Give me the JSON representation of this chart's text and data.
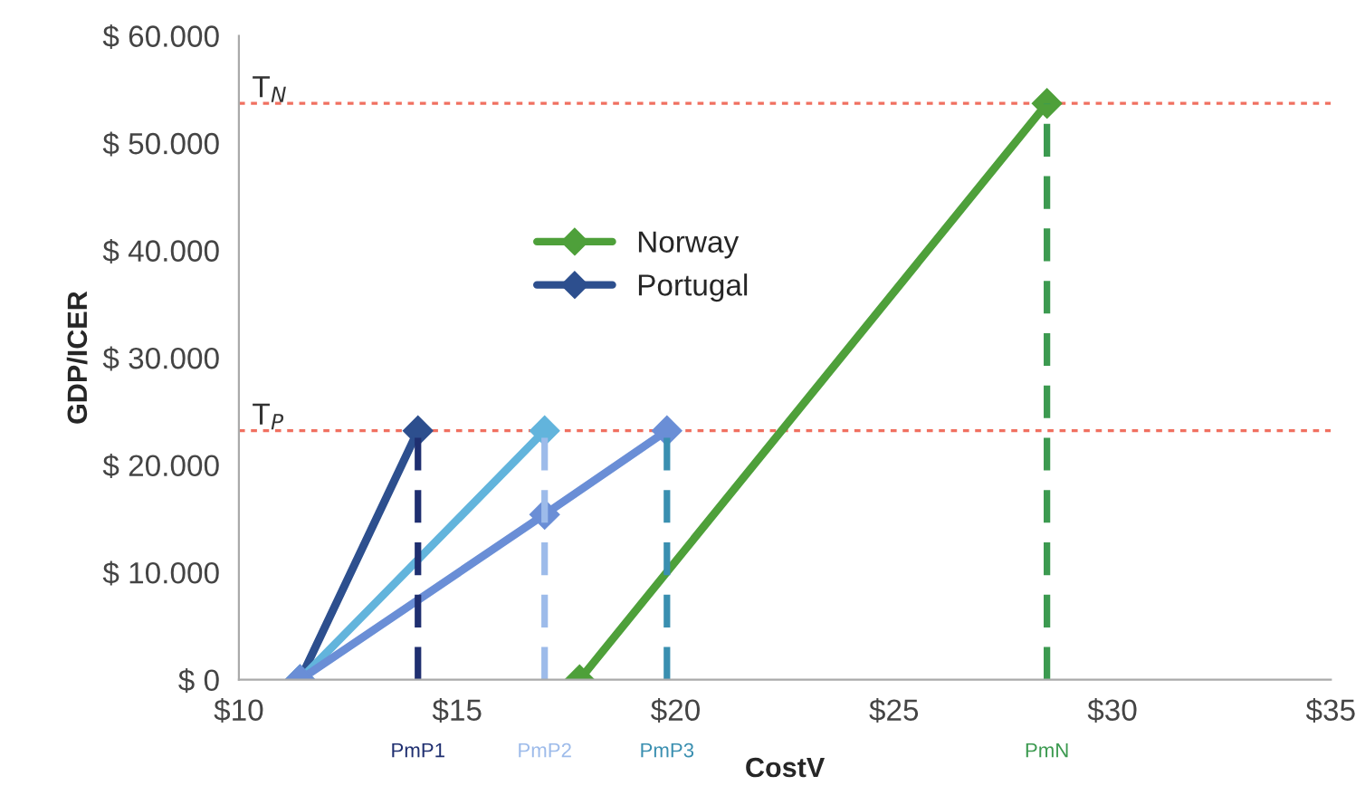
{
  "chart_data": {
    "type": "line",
    "xlabel": "CostV",
    "ylabel": "GDP/ICER",
    "series": [
      {
        "name": "Norway",
        "color": "#4ea03a",
        "x": [
          17.8,
          28.5
        ],
        "values": [
          0,
          53700
        ],
        "marker": "diamond",
        "line_style": "solid"
      },
      {
        "name": "Portugal",
        "color": "#2d4f8e",
        "x": [
          11.4,
          14.1
        ],
        "values": [
          0,
          23200
        ],
        "marker": "diamond",
        "line_style": "solid"
      },
      {
        "color": "#62b4dc",
        "x": [
          11.4,
          17.0
        ],
        "values": [
          0,
          23200
        ],
        "marker": "diamond",
        "line_style": "solid"
      },
      {
        "color": "#6a8ed6",
        "x": [
          11.4,
          17.0,
          19.8
        ],
        "values": [
          0,
          15400,
          23200
        ],
        "marker": "diamond",
        "line_style": "solid"
      },
      {
        "name": "PmP1",
        "color": "#1f2f70",
        "x": [
          14.1,
          14.1
        ],
        "values": [
          0,
          23200
        ],
        "marker": "none",
        "line_style": "dashed"
      },
      {
        "name": "PmP2",
        "color": "#9dbbea",
        "x": [
          17.0,
          17.0
        ],
        "values": [
          0,
          23200
        ],
        "marker": "none",
        "line_style": "dashed"
      },
      {
        "name": "PmP3",
        "color": "#3a8fb0",
        "x": [
          19.8,
          19.8
        ],
        "values": [
          0,
          23200
        ],
        "marker": "none",
        "line_style": "dashed"
      },
      {
        "name": "PmN",
        "color": "#3c9a50",
        "x": [
          28.5,
          28.5
        ],
        "values": [
          0,
          53700
        ],
        "marker": "none",
        "line_style": "dashed"
      }
    ],
    "ref_lines": [
      {
        "axis": "y",
        "value": 53700,
        "label": "T$_{N}$",
        "color": "#f07060",
        "line_style": "dotted"
      },
      {
        "axis": "y",
        "value": 23200,
        "label": "T$_{P}$",
        "color": "#f07060",
        "line_style": "dotted"
      }
    ],
    "xlim": [
      10,
      35
    ],
    "xticks": [
      {
        "value": 10,
        "label": "$10"
      },
      {
        "value": 15,
        "label": "$15"
      },
      {
        "value": 20,
        "label": "$20"
      },
      {
        "value": 25,
        "label": "$25"
      },
      {
        "value": 30,
        "label": "$30"
      },
      {
        "value": 35,
        "label": "$35"
      }
    ],
    "ylim": [
      0,
      60000
    ],
    "yticks": [
      {
        "value": 0,
        "label": "$ 0"
      },
      {
        "value": 10000,
        "label": "$ 10.000"
      },
      {
        "value": 20000,
        "label": "$ 20.000"
      },
      {
        "value": 30000,
        "label": "$ 30.000"
      },
      {
        "value": 40000,
        "label": "$ 40.000"
      },
      {
        "value": 50000,
        "label": "$ 50.000"
      },
      {
        "value": 60000,
        "label": "$ 60.000"
      }
    ],
    "grid": false,
    "legend": "top"
  }
}
